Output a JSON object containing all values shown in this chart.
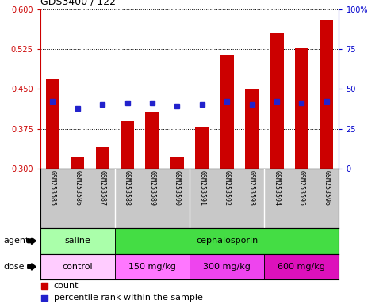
{
  "title": "GDS3400 / 122",
  "samples": [
    "GSM253585",
    "GSM253586",
    "GSM253587",
    "GSM253588",
    "GSM253589",
    "GSM253590",
    "GSM253591",
    "GSM253592",
    "GSM253593",
    "GSM253594",
    "GSM253595",
    "GSM253596"
  ],
  "bar_values": [
    0.468,
    0.323,
    0.34,
    0.39,
    0.408,
    0.322,
    0.378,
    0.515,
    0.45,
    0.555,
    0.527,
    0.58
  ],
  "percentile_values": [
    42,
    38,
    40,
    41,
    41,
    39,
    40,
    42,
    40,
    42,
    41,
    42
  ],
  "ylim_left": [
    0.3,
    0.6
  ],
  "ylim_right": [
    0,
    100
  ],
  "yticks_left": [
    0.3,
    0.375,
    0.45,
    0.525,
    0.6
  ],
  "yticks_right": [
    0,
    25,
    50,
    75,
    100
  ],
  "bar_color": "#cc0000",
  "dot_color": "#2222cc",
  "grid_color": "#000000",
  "agent_segments": [
    {
      "label": "saline",
      "start": 0,
      "end": 3,
      "color": "#aaffaa"
    },
    {
      "label": "cephalosporin",
      "start": 3,
      "end": 12,
      "color": "#44dd44"
    }
  ],
  "dose_segments": [
    {
      "label": "control",
      "start": 0,
      "end": 3,
      "color": "#ffccff"
    },
    {
      "label": "150 mg/kg",
      "start": 3,
      "end": 6,
      "color": "#ff66ff"
    },
    {
      "label": "300 mg/kg",
      "start": 6,
      "end": 9,
      "color": "#ee44ee"
    },
    {
      "label": "600 mg/kg",
      "start": 9,
      "end": 12,
      "color": "#dd22cc"
    }
  ],
  "agent_label": "agent",
  "dose_label": "dose",
  "legend_count": "count",
  "legend_pct": "percentile rank within the sample",
  "tick_color_left": "#cc0000",
  "tick_color_right": "#0000cc",
  "xtick_bg": "#c8c8c8",
  "separator_color": "#ffffff"
}
